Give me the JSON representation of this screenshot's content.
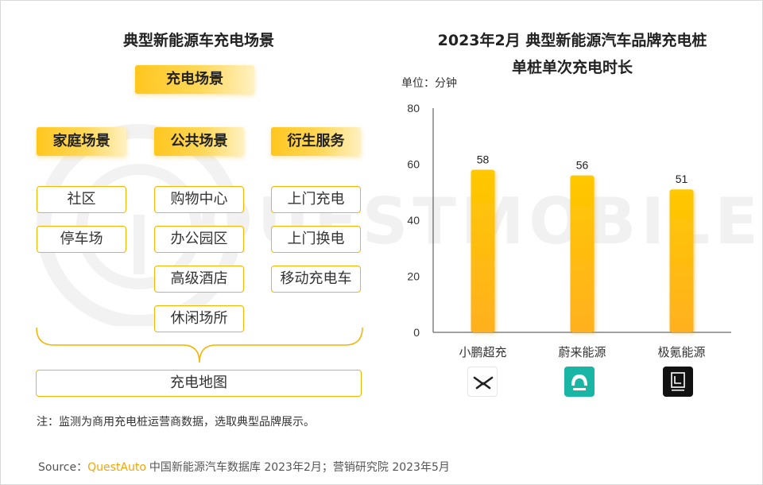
{
  "left": {
    "title": "典型新能源车充电场景",
    "top_tag": "充电场景",
    "categories": [
      {
        "label": "家庭场景",
        "items": [
          "社区",
          "停车场"
        ]
      },
      {
        "label": "公共场景",
        "items": [
          "购物中心",
          "办公园区",
          "高级酒店",
          "休闲场所"
        ]
      },
      {
        "label": "衍生服务",
        "items": [
          "上门充电",
          "上门换电",
          "移动充电车"
        ]
      }
    ],
    "bottom_item": "充电地图"
  },
  "watermark": "QUESTMOBILE",
  "note": "注：监测为商用充电桩运营商数据，选取典型品牌展示。",
  "source": {
    "prefix": "Source：",
    "brand": "QuestAuto",
    "rest": "中国新能源汽车数据库 2023年2月；营销研究院 2023年5月"
  },
  "chart_data": {
    "type": "bar",
    "title_line1": "2023年2月 典型新能源汽车品牌充电桩",
    "title_line2": "单桩单次充电时长",
    "unit_label": "单位：分钟",
    "categories": [
      "小鹏超充",
      "蔚来能源",
      "极氪能源"
    ],
    "values": [
      58,
      56,
      51
    ],
    "ylim": [
      0,
      80
    ],
    "yticks": [
      0,
      20,
      40,
      60,
      80
    ],
    "bar_color": "#ffc200",
    "grid": false,
    "legend": "none"
  },
  "logos": {
    "xpeng": "xpeng-logo-icon",
    "nio": "nio-logo-icon",
    "zeekr": "zeekr-logo-icon"
  }
}
